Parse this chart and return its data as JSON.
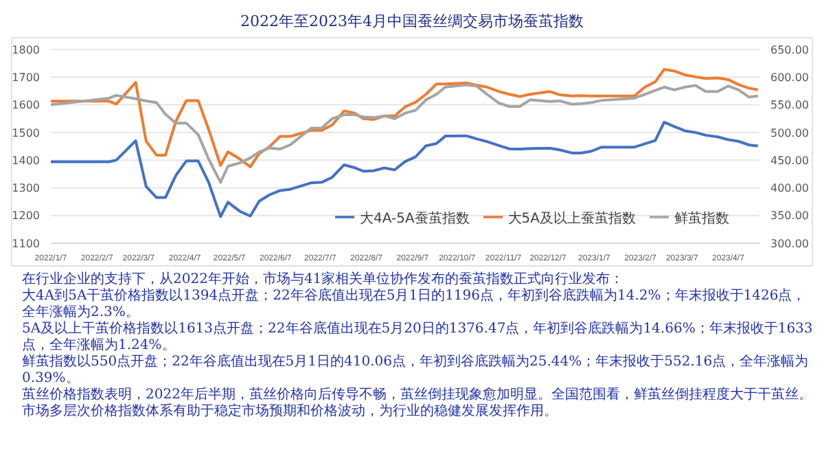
{
  "chart_data": {
    "type": "line",
    "title": "2022年至2023年4月中国蚕丝绸交易市场蚕茧指数",
    "x": [
      "2022-01-07",
      "2022-02-15",
      "2022-02-20",
      "2022-03-05",
      "2022-03-12",
      "2022-03-19",
      "2022-03-25",
      "2022-04-01",
      "2022-04-08",
      "2022-04-16",
      "2022-04-23",
      "2022-05-01",
      "2022-05-06",
      "2022-05-14",
      "2022-05-21",
      "2022-05-27",
      "2022-06-03",
      "2022-06-10",
      "2022-06-17",
      "2022-07-01",
      "2022-07-08",
      "2022-07-15",
      "2022-07-23",
      "2022-07-30",
      "2022-08-05",
      "2022-08-12",
      "2022-08-19",
      "2022-08-26",
      "2022-09-02",
      "2022-09-09",
      "2022-09-16",
      "2022-09-23",
      "2022-09-29",
      "2022-10-13",
      "2022-10-20",
      "2022-10-27",
      "2022-11-04",
      "2022-11-11",
      "2022-11-18",
      "2022-11-25",
      "2022-12-08",
      "2022-12-15",
      "2022-12-23",
      "2022-12-29",
      "2023-01-05",
      "2023-01-12",
      "2023-02-03",
      "2023-02-10",
      "2023-02-17",
      "2023-02-23",
      "2023-03-02",
      "2023-03-09",
      "2023-03-16",
      "2023-03-23",
      "2023-03-31",
      "2023-04-07",
      "2023-04-14",
      "2023-04-21",
      "2023-04-27"
    ],
    "series": [
      {
        "name": "大4A-5A蚕茧指数",
        "color": "#4472c4",
        "values": [
          1394,
          1394,
          1400,
          1470,
          1305,
          1265,
          1265,
          1345,
          1397,
          1397,
          1320,
          1196,
          1248,
          1215,
          1198,
          1252,
          1275,
          1290,
          1295,
          1318,
          1320,
          1338,
          1383,
          1373,
          1360,
          1362,
          1372,
          1365,
          1395,
          1412,
          1452,
          1460,
          1487,
          1488,
          1477,
          1467,
          1453,
          1441,
          1440,
          1442,
          1443,
          1437,
          1426,
          1426,
          1432,
          1447,
          1447,
          1459,
          1471,
          1537,
          1521,
          1506,
          1500,
          1490,
          1484,
          1474,
          1468,
          1455,
          1451
        ]
      },
      {
        "name": "大5A及以上蚕茧指数",
        "color": "#ed7d31",
        "values": [
          1613,
          1613,
          1603,
          1681,
          1469,
          1418,
          1418,
          1541,
          1615,
          1615,
          1511,
          1381,
          1430,
          1404,
          1376,
          1424,
          1449,
          1486,
          1486,
          1508,
          1508,
          1527,
          1578,
          1570,
          1550,
          1547,
          1560,
          1560,
          1593,
          1609,
          1638,
          1675,
          1675,
          1679,
          1671,
          1664,
          1648,
          1638,
          1630,
          1638,
          1648,
          1636,
          1632,
          1633,
          1632,
          1632,
          1632,
          1664,
          1683,
          1728,
          1722,
          1708,
          1701,
          1695,
          1697,
          1691,
          1673,
          1660,
          1654
        ]
      },
      {
        "name": "鲜茧指数",
        "color": "#a5a5a5",
        "axis": "y2",
        "values": [
          550,
          562,
          567,
          561,
          557,
          554,
          533,
          517,
          517,
          496,
          452,
          410,
          439,
          445,
          454,
          465,
          472,
          470,
          478,
          508,
          508,
          525,
          532,
          532,
          528,
          527,
          530,
          525,
          535,
          540,
          559,
          569,
          582,
          586,
          584,
          569,
          553,
          547,
          547,
          559,
          556,
          557,
          551,
          552,
          554,
          558,
          562,
          569,
          576,
          582,
          577,
          582,
          585,
          574,
          574,
          584,
          577,
          564,
          566
        ]
      }
    ],
    "xlim": [
      "2022-01-07",
      "2023-04-28"
    ],
    "xticks": [
      {
        "value": "2022-01-07",
        "label": "2022/1/7"
      },
      {
        "value": "2022-02-07",
        "label": "2022/2/7"
      },
      {
        "value": "2022-03-07",
        "label": "2022/3/7"
      },
      {
        "value": "2022-04-07",
        "label": "2022/4/7"
      },
      {
        "value": "2022-05-07",
        "label": "2022/5/7"
      },
      {
        "value": "2022-06-07",
        "label": "2022/6/7"
      },
      {
        "value": "2022-07-07",
        "label": "2022/7/7"
      },
      {
        "value": "2022-08-07",
        "label": "2022/8/7"
      },
      {
        "value": "2022-09-07",
        "label": "2022/9/7"
      },
      {
        "value": "2022-10-07",
        "label": "2022/10/7"
      },
      {
        "value": "2022-11-07",
        "label": "2022/11/7"
      },
      {
        "value": "2022-12-07",
        "label": "2022/12/7"
      },
      {
        "value": "2023-01-07",
        "label": "2023/1/7"
      },
      {
        "value": "2023-02-07",
        "label": "2023/2/7"
      },
      {
        "value": "2023-03-07",
        "label": "2023/3/7"
      },
      {
        "value": "2023-04-07",
        "label": "2023/4/7"
      }
    ],
    "ylim": [
      1100,
      1800
    ],
    "yticks": [
      1100,
      1200,
      1300,
      1400,
      1500,
      1600,
      1700,
      1800
    ],
    "y2lim": [
      300,
      650
    ],
    "y2ticks": [
      {
        "value": 300,
        "label": "300.00"
      },
      {
        "value": 350,
        "label": "350.00"
      },
      {
        "value": 400,
        "label": "400.00"
      },
      {
        "value": 450,
        "label": "450.00"
      },
      {
        "value": 500,
        "label": "500.00"
      },
      {
        "value": 550,
        "label": "550.00"
      },
      {
        "value": 600,
        "label": "600.00"
      },
      {
        "value": 650,
        "label": "650.00"
      }
    ],
    "grid": "y",
    "legend": "bottom right",
    "marker": "none",
    "line_style": "solid",
    "annotations": [
      "在行业企业的支持下，从2022年开始，市场与41家相关单位协作发布的蚕茧指数正式向行业发布：",
      "大4A到5A干茧价格指数以1394点开盘；22年谷底值出现在5月1日的1196点，年初到谷底跌幅为14.2%；年末报收于1426点，全年涨幅为2.3%。",
      "5A及以上干茧价格指数以1613点开盘；22年谷底值出现在5月20日的1376.47点，年初到谷底跌幅为14.66%；年末报收于1633点，全年涨幅为1.24%。",
      "鲜茧指数以550点开盘；22年谷底值出现在5月1日的410.06点，年初到谷底跌幅为25.44%；年末报收于552.16点，全年涨幅为0.39%。",
      "茧丝价格指数表明，2022年后半期，茧丝价格向后传导不畅，茧丝倒挂现象愈加明显。全国范围看，鲜茧丝倒挂程度大于干茧丝。",
      "市场多层次价格指数体系有助于稳定市场预期和价格波动，为行业的稳健发展发挥作用。"
    ]
  }
}
